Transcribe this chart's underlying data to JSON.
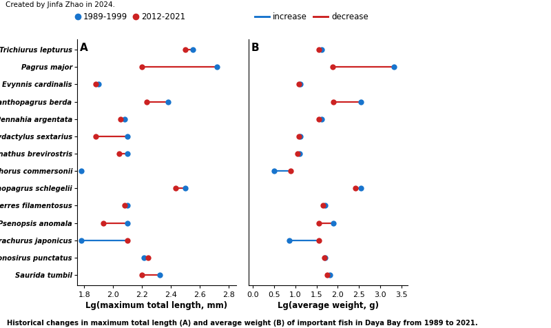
{
  "species": [
    "Trichiurus lepturus",
    "Pagrus major",
    "Evynnis cardinalis",
    "Acanthopagrus berda",
    "Pennahia argentata",
    "Polydactylus sextarius",
    "Leiognathus brevirostris",
    "Stolephorus commersonii",
    "Acanthopagrus schlegelii",
    "Gerres filamentosus",
    "Psenopsis anomala",
    "Trachurus japonicus",
    "Konosirus punctatus",
    "Saurida tumbil"
  ],
  "panel_A": {
    "blue": [
      2.55,
      2.72,
      1.9,
      2.38,
      2.08,
      2.1,
      2.1,
      1.78,
      2.5,
      2.1,
      2.1,
      1.78,
      2.21,
      2.32
    ],
    "red": [
      2.5,
      2.2,
      1.88,
      2.23,
      2.05,
      1.88,
      2.04,
      null,
      2.43,
      2.08,
      1.93,
      2.1,
      2.24,
      2.2
    ],
    "xlim": [
      1.75,
      2.85
    ],
    "xticks": [
      1.8,
      2.0,
      2.2,
      2.4,
      2.6,
      2.8
    ],
    "xlabel": "Lg(maximum total length, mm)"
  },
  "panel_B": {
    "blue": [
      1.62,
      3.32,
      1.12,
      2.55,
      1.62,
      1.12,
      1.1,
      0.5,
      2.55,
      1.7,
      1.9,
      0.85,
      1.7,
      1.82
    ],
    "red": [
      1.55,
      1.88,
      1.08,
      1.9,
      1.55,
      1.08,
      1.05,
      0.88,
      2.42,
      1.65,
      1.55,
      1.55,
      1.68,
      1.75
    ],
    "xlim": [
      -0.1,
      3.65
    ],
    "xticks": [
      0.0,
      0.5,
      1.0,
      1.5,
      2.0,
      2.5,
      3.0,
      3.5
    ],
    "xlabel": "Lg(average weight, g)"
  },
  "blue_color": "#1874CD",
  "red_color": "#CC2222",
  "marker_size": 6,
  "line_width": 1.6,
  "label_blue": "1989-1999",
  "label_red": "2012-2021",
  "panel_A_label": "A",
  "panel_B_label": "B",
  "title_top": "Created by Jinfa Zhao in 2024.",
  "caption": "Historical changes in maximum total length (A) and average weight (B) of important fish in Daya Bay from 1989 to 2021.",
  "figsize": [
    8.0,
    4.76
  ],
  "dpi": 100
}
